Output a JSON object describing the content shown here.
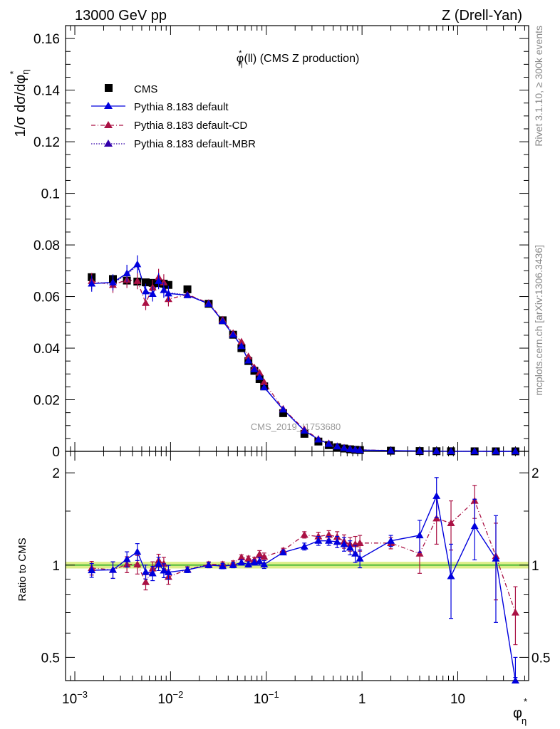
{
  "header": {
    "left": "13000 GeV pp",
    "right": "Z (Drell-Yan)"
  },
  "side_notes": {
    "rivet": "Rivet 3.1.10, ≥ 300k events",
    "mcplots": "mcplots.cern.ch [arXiv:1306.3436]"
  },
  "chart_data": {
    "type": "scatter",
    "title_main": "φ",
    "title_sup": "*",
    "title_sub": "η",
    "title_rest": "(ll) (CMS Z production)",
    "watermark": "CMS_2019_I1753680",
    "ylabel_main": "1/σ dσ/dφ",
    "ylabel_sup": "*",
    "ylabel_sub": "η",
    "ratio_ylabel": "Ratio to CMS",
    "xlabel_main": "φ",
    "xlabel_sup": "*",
    "xlabel_sub": "η",
    "xscale": "log",
    "xlim": [
      0.0008,
      55
    ],
    "ylim": [
      0,
      0.165
    ],
    "ratio_ylim": [
      0.42,
      2.35
    ],
    "xticks": [
      {
        "value": 0.001,
        "base": "10",
        "exp": "−3"
      },
      {
        "value": 0.01,
        "base": "10",
        "exp": "−2"
      },
      {
        "value": 0.1,
        "base": "10",
        "exp": "−1"
      },
      {
        "value": 1,
        "base": "1",
        "exp": ""
      },
      {
        "value": 10,
        "base": "10",
        "exp": ""
      }
    ],
    "yticks": [
      {
        "value": 0,
        "label": "0"
      },
      {
        "value": 0.02,
        "label": "0.02"
      },
      {
        "value": 0.04,
        "label": "0.04"
      },
      {
        "value": 0.06,
        "label": "0.06"
      },
      {
        "value": 0.08,
        "label": "0.08"
      },
      {
        "value": 0.1,
        "label": "0.1"
      },
      {
        "value": 0.12,
        "label": "0.12"
      },
      {
        "value": 0.14,
        "label": "0.14"
      },
      {
        "value": 0.16,
        "label": "0.16"
      }
    ],
    "ratio_yticks": [
      {
        "value": 0.5,
        "label": "0.5"
      },
      {
        "value": 1,
        "label": "1"
      },
      {
        "value": 2,
        "label": "2"
      }
    ],
    "legend": {
      "position": "top-left",
      "entries": [
        {
          "label": "CMS",
          "style": "data"
        },
        {
          "label": "Pythia 8.183 default",
          "style": "solid",
          "color": "#0000dd"
        },
        {
          "label": "Pythia 8.183 default-CD",
          "style": "dashdot",
          "color": "#aa1144"
        },
        {
          "label": "Pythia 8.183 default-MBR",
          "style": "dotted",
          "color": "#3300aa"
        }
      ]
    },
    "x": [
      0.0015,
      0.0025,
      0.0035,
      0.0045,
      0.0055,
      0.0065,
      0.0075,
      0.0085,
      0.0095,
      0.015,
      0.025,
      0.035,
      0.045,
      0.055,
      0.065,
      0.075,
      0.085,
      0.095,
      0.15,
      0.25,
      0.35,
      0.45,
      0.55,
      0.65,
      0.75,
      0.85,
      0.95,
      2,
      4,
      6,
      8.5,
      15,
      25,
      40
    ],
    "series": [
      {
        "name": "CMS",
        "color": "#000000",
        "marker": "square",
        "values": [
          0.0675,
          0.0668,
          0.0662,
          0.0658,
          0.0655,
          0.0653,
          0.0652,
          0.065,
          0.0645,
          0.0628,
          0.0572,
          0.0508,
          0.0452,
          0.04,
          0.035,
          0.0312,
          0.028,
          0.0252,
          0.0148,
          0.0068,
          0.0038,
          0.0024,
          0.0016,
          0.0011,
          0.0008,
          0.0006,
          0.0005,
          0.00025,
          0.00011,
          6e-05,
          4e-05,
          2e-05,
          8e-06,
          3e-06
        ]
      },
      {
        "name": "Pythia 8.183 default",
        "color": "#0000dd",
        "marker": "triangle",
        "values": [
          0.065,
          0.0655,
          0.069,
          0.0725,
          0.062,
          0.061,
          0.066,
          0.0625,
          0.0612,
          0.0605,
          0.0572,
          0.0505,
          0.0452,
          0.0408,
          0.0352,
          0.0318,
          0.0288,
          0.0248,
          0.0162,
          0.008,
          0.0046,
          0.0029,
          0.0019,
          0.0013,
          0.0009,
          0.0007,
          0.0005,
          0.0003,
          0.00014,
          0.0001,
          4e-05,
          3e-05,
          8e-06,
          1.3e-06
        ],
        "ratio": [
          0.962,
          0.965,
          1.045,
          1.105,
          0.95,
          0.94,
          1.01,
          0.96,
          0.948,
          0.965,
          1.0,
          0.993,
          1.0,
          1.02,
          1.005,
          1.02,
          1.03,
          1.005,
          1.1,
          1.15,
          1.2,
          1.2,
          1.19,
          1.17,
          1.14,
          1.09,
          1.05,
          1.2,
          1.25,
          1.68,
          0.92,
          1.34,
          1.05,
          0.42
        ],
        "ratio_err": [
          0.05,
          0.06,
          0.06,
          0.07,
          0.05,
          0.05,
          0.05,
          0.05,
          0.05,
          0.02,
          0.02,
          0.02,
          0.02,
          0.02,
          0.02,
          0.02,
          0.03,
          0.03,
          0.02,
          0.03,
          0.04,
          0.04,
          0.05,
          0.06,
          0.06,
          0.07,
          0.07,
          0.05,
          0.15,
          0.25,
          0.25,
          0.3,
          0.4,
          0.08
        ]
      },
      {
        "name": "Pythia 8.183 default-CD",
        "color": "#aa1144",
        "marker": "triangle",
        "values": [
          0.066,
          0.0645,
          0.0665,
          0.066,
          0.0575,
          0.0635,
          0.0675,
          0.0655,
          0.059,
          0.0608,
          0.0575,
          0.051,
          0.0458,
          0.0425,
          0.0368,
          0.0325,
          0.0305,
          0.0268,
          0.0165,
          0.0085,
          0.0048,
          0.0031,
          0.002,
          0.0014,
          0.001,
          0.0007,
          0.0006,
          0.0003,
          0.00012,
          8e-05,
          5e-05,
          3.3e-05,
          8e-06,
          2.1e-06
        ],
        "ratio": [
          0.978,
          0.965,
          1.005,
          1.005,
          0.88,
          0.975,
          1.035,
          1.01,
          0.915,
          0.968,
          1.005,
          1.005,
          1.012,
          1.06,
          1.05,
          1.04,
          1.085,
          1.065,
          1.115,
          1.255,
          1.24,
          1.255,
          1.235,
          1.195,
          1.17,
          1.17,
          1.18,
          1.18,
          1.09,
          1.42,
          1.37,
          1.62,
          1.07,
          0.7
        ],
        "ratio_err": [
          0.05,
          0.06,
          0.06,
          0.07,
          0.05,
          0.05,
          0.05,
          0.05,
          0.05,
          0.02,
          0.02,
          0.02,
          0.02,
          0.02,
          0.02,
          0.02,
          0.03,
          0.03,
          0.02,
          0.03,
          0.04,
          0.04,
          0.05,
          0.06,
          0.06,
          0.07,
          0.07,
          0.05,
          0.15,
          0.25,
          0.25,
          0.2,
          0.3,
          0.15
        ]
      },
      {
        "name": "Pythia 8.183 default-MBR",
        "color": "#3300aa",
        "marker": "triangle",
        "values": [
          0.0652,
          0.0652,
          0.0685,
          0.072,
          0.0622,
          0.0612,
          0.0658,
          0.0628,
          0.0615,
          0.0606,
          0.0573,
          0.0506,
          0.0453,
          0.041,
          0.0353,
          0.0319,
          0.0289,
          0.025,
          0.0163,
          0.0081,
          0.0046,
          0.0029,
          0.0019,
          0.0013,
          0.0009,
          0.0007,
          0.0005,
          0.0003,
          0.00014,
          0.0001,
          4e-05,
          3e-05,
          8e-06,
          1.3e-06
        ]
      }
    ],
    "band": {
      "color": "#ddee88",
      "ratio_halfwidth": 0.025
    }
  }
}
